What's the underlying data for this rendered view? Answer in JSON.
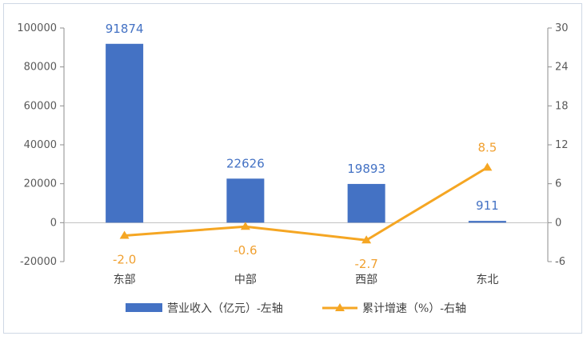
{
  "chart_data": {
    "type": "bar",
    "categories": [
      "东部",
      "中部",
      "西部",
      "东北"
    ],
    "series": [
      {
        "name": "营业收入（亿元）-左轴",
        "type": "bar",
        "axis": "left",
        "values": [
          91874,
          22626,
          19893,
          911
        ],
        "labels": [
          "91874",
          "22626",
          "19893",
          "911"
        ],
        "color": "#4472c4"
      },
      {
        "name": "累计增速（%）-右轴",
        "type": "line",
        "axis": "right",
        "values": [
          -2.0,
          -0.6,
          -2.7,
          8.5
        ],
        "labels": [
          "-2.0",
          "-0.6",
          "-2.7",
          "8.5"
        ],
        "color": "#f5a623"
      }
    ],
    "left_axis": {
      "range": [
        -20000,
        100000
      ],
      "ticks": [
        100000,
        80000,
        60000,
        40000,
        20000,
        0,
        -20000
      ],
      "tick_labels": [
        "100000",
        "80000",
        "60000",
        "40000",
        "20000",
        "0",
        "-20000"
      ]
    },
    "right_axis": {
      "range": [
        -6,
        30
      ],
      "ticks": [
        30,
        24,
        18,
        12,
        6,
        0,
        -6
      ],
      "tick_labels": [
        "30",
        "24",
        "18",
        "12",
        "6",
        "0",
        "-6"
      ]
    },
    "grid": false,
    "legend": "bottom"
  }
}
